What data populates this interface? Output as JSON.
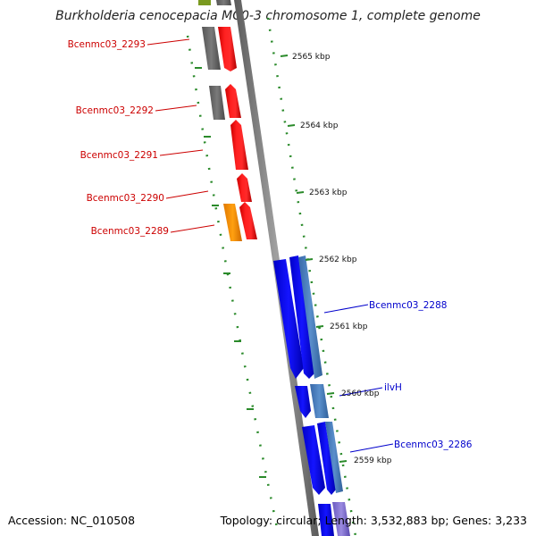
{
  "header": {
    "title": "Burkholderia cenocepacia MC0-3 chromosome 1, complete genome"
  },
  "footer": {
    "accession": "Accession: NC_010508",
    "summary": "Topology: circular; Length: 3,532,883 bp; Genes: 3,233"
  },
  "scale": {
    "unit": "kbp",
    "ticks": [
      "2565 kbp",
      "2564 kbp",
      "2563 kbp",
      "2562 kbp",
      "2561 kbp",
      "2560 kbp",
      "2559 kbp"
    ]
  },
  "genes": {
    "left_strand": [
      "Bcenmc03_2293",
      "Bcenmc03_2292",
      "Bcenmc03_2291",
      "Bcenmc03_2290",
      "Bcenmc03_2289"
    ],
    "right_strand": [
      "Bcenmc03_2288",
      "ilvH",
      "Bcenmc03_2286"
    ]
  },
  "colors": {
    "backbone": "#8a8a8a",
    "tick": "#2a8a2a",
    "left_label": "#cc0000",
    "right_label": "#0000cc",
    "red_feature": "#ff1a1a",
    "gray_feature": "#6e6e6e",
    "orange_feature": "#ff9900",
    "blue_feature": "#0d0dff",
    "steelblue_feature": "#4a7fc0",
    "violet_feature": "#8a7ad8"
  }
}
